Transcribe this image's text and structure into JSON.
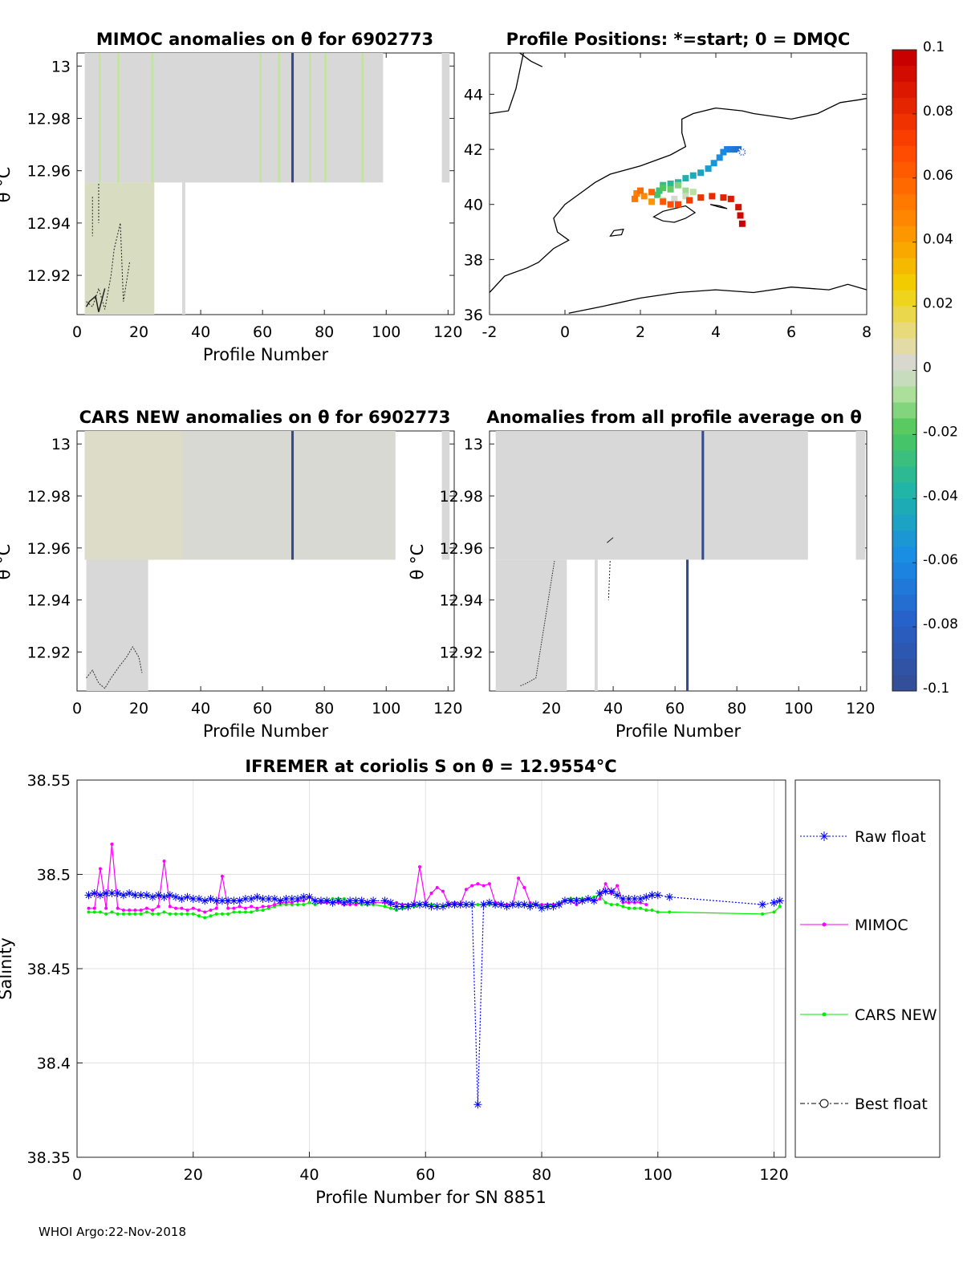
{
  "footer": "WHOI Argo:22-Nov-2018",
  "chart_data": [
    {
      "id": "mimoc",
      "type": "heatmap",
      "title": "MIMOC anomalies on θ  for 6902773",
      "xlabel": "Profile Number",
      "ylabel": "θ °C",
      "xlim": [
        0,
        122
      ],
      "ylim": [
        12.905,
        13.005
      ],
      "xticks": [
        0,
        20,
        40,
        60,
        80,
        100,
        120
      ],
      "yticks": [
        12.92,
        12.94,
        12.96,
        12.98,
        13
      ],
      "ytick_labels": [
        "12.92",
        "12.94",
        "12.96",
        "12.98",
        "13"
      ]
    },
    {
      "id": "map",
      "type": "scatter",
      "title": "Profile Positions: *=start; 0 = DMQC",
      "xlim": [
        -2,
        8
      ],
      "ylim": [
        36,
        45.5
      ],
      "xticks": [
        -2,
        0,
        2,
        4,
        6,
        8
      ],
      "yticks": [
        36,
        38,
        40,
        42,
        44
      ],
      "track": [
        [
          4.7,
          41.9
        ],
        [
          4.6,
          42.0
        ],
        [
          4.5,
          42.0
        ],
        [
          4.4,
          42.0
        ],
        [
          4.3,
          42.0
        ],
        [
          4.2,
          41.9
        ],
        [
          4.1,
          41.7
        ],
        [
          3.95,
          41.5
        ],
        [
          3.8,
          41.3
        ],
        [
          3.6,
          41.15
        ],
        [
          3.4,
          41.05
        ],
        [
          3.2,
          40.95
        ],
        [
          3.0,
          40.8
        ],
        [
          2.8,
          40.75
        ],
        [
          2.6,
          40.7
        ],
        [
          2.5,
          40.5
        ],
        [
          2.45,
          40.35
        ],
        [
          2.6,
          40.6
        ],
        [
          2.8,
          40.55
        ],
        [
          3.0,
          40.7
        ],
        [
          3.2,
          40.5
        ],
        [
          3.4,
          40.45
        ],
        [
          3.2,
          40.3
        ],
        [
          2.9,
          40.2
        ],
        [
          2.6,
          40.15
        ],
        [
          2.3,
          40.1
        ],
        [
          2.1,
          40.3
        ],
        [
          1.9,
          40.4
        ],
        [
          1.85,
          40.2
        ],
        [
          2.0,
          40.5
        ],
        [
          2.3,
          40.45
        ],
        [
          2.6,
          40.1
        ],
        [
          2.8,
          40.0
        ],
        [
          3.0,
          40.0
        ],
        [
          3.3,
          40.15
        ],
        [
          3.6,
          40.25
        ],
        [
          3.9,
          40.3
        ],
        [
          4.2,
          40.25
        ],
        [
          4.4,
          40.2
        ],
        [
          4.6,
          39.9
        ],
        [
          4.65,
          39.6
        ],
        [
          4.7,
          39.3
        ]
      ],
      "ticks_right": [
        0.1,
        0.08,
        0.06,
        0.04,
        0.02,
        0,
        -0.02,
        -0.04,
        -0.06,
        -0.08,
        -0.1
      ],
      "tick_labels_right": [
        "0.1",
        "0.08",
        "0.06",
        "0.04",
        "0.02",
        "0",
        "-0.02",
        "-0.04",
        "-0.06",
        "-0.08",
        "-0.1"
      ]
    },
    {
      "id": "cars",
      "type": "heatmap",
      "title": "CARS NEW anomalies on θ for 6902773",
      "xlabel": "Profile Number",
      "ylabel": "θ °C",
      "xlim": [
        0,
        122
      ],
      "ylim": [
        12.905,
        13.005
      ],
      "xticks": [
        0,
        20,
        40,
        60,
        80,
        100,
        120
      ],
      "yticks": [
        12.92,
        12.94,
        12.96,
        12.98,
        13
      ],
      "ytick_labels": [
        "12.92",
        "12.94",
        "12.96",
        "12.98",
        "13"
      ]
    },
    {
      "id": "avg",
      "type": "heatmap",
      "title": "Anomalies from all profile average on θ",
      "xlabel": "Profile Number",
      "ylabel": "θ °C",
      "xlim": [
        0,
        122
      ],
      "ylim": [
        12.905,
        13.005
      ],
      "xticks": [
        20,
        40,
        60,
        80,
        100,
        120
      ],
      "yticks": [
        12.92,
        12.94,
        12.96,
        12.98,
        13
      ],
      "ytick_labels": [
        "12.92",
        "12.94",
        "12.96",
        "12.98",
        "13"
      ]
    },
    {
      "id": "salinity",
      "type": "line",
      "title": "IFREMER at coriolis S on θ = 12.9554°C",
      "xlabel": "Profile Number for SN 8851",
      "ylabel": "Salinity",
      "xlim": [
        0,
        122
      ],
      "ylim": [
        38.35,
        38.55
      ],
      "xticks": [
        0,
        20,
        40,
        60,
        80,
        100,
        120
      ],
      "yticks": [
        38.35,
        38.4,
        38.45,
        38.5,
        38.55
      ],
      "ytick_labels": [
        "38.35",
        "38.4",
        "38.45",
        "38.5",
        "38.55"
      ],
      "grid": true,
      "legend_position": "outside-right",
      "series": [
        {
          "name": "Raw float",
          "color": "#0000ff",
          "x": [
            2,
            3,
            4,
            5,
            6,
            7,
            8,
            9,
            10,
            11,
            12,
            13,
            14,
            15,
            16,
            17,
            18,
            19,
            20,
            21,
            22,
            23,
            24,
            25,
            26,
            27,
            28,
            29,
            30,
            31,
            32,
            33,
            34,
            35,
            36,
            37,
            38,
            39,
            40,
            41,
            42,
            43,
            44,
            45,
            46,
            47,
            48,
            49,
            50,
            51,
            53,
            54,
            55,
            56,
            57,
            58,
            59,
            60,
            61,
            62,
            63,
            64,
            65,
            66,
            67,
            68,
            69,
            70,
            71,
            72,
            73,
            74,
            75,
            76,
            77,
            78,
            79,
            80,
            81,
            82,
            83,
            84,
            85,
            86,
            87,
            88,
            89,
            90,
            91,
            92,
            93,
            94,
            95,
            96,
            97,
            98,
            99,
            100,
            102,
            118,
            120,
            121
          ],
          "y": [
            38.489,
            38.49,
            38.489,
            38.49,
            38.49,
            38.49,
            38.489,
            38.49,
            38.489,
            38.489,
            38.489,
            38.488,
            38.489,
            38.488,
            38.489,
            38.488,
            38.487,
            38.488,
            38.487,
            38.487,
            38.486,
            38.487,
            38.486,
            38.486,
            38.486,
            38.486,
            38.486,
            38.487,
            38.487,
            38.488,
            38.487,
            38.487,
            38.487,
            38.486,
            38.487,
            38.487,
            38.487,
            38.488,
            38.488,
            38.486,
            38.486,
            38.486,
            38.485,
            38.486,
            38.485,
            38.486,
            38.486,
            38.486,
            38.485,
            38.486,
            38.486,
            38.485,
            38.483,
            38.483,
            38.483,
            38.484,
            38.484,
            38.484,
            38.483,
            38.483,
            38.483,
            38.484,
            38.484,
            38.484,
            38.484,
            38.484,
            38.378,
            38.484,
            38.485,
            38.484,
            38.484,
            38.483,
            38.484,
            38.484,
            38.484,
            38.483,
            38.484,
            38.482,
            38.483,
            38.483,
            38.484,
            38.486,
            38.486,
            38.486,
            38.486,
            38.487,
            38.486,
            38.49,
            38.491,
            38.491,
            38.489,
            38.487,
            38.487,
            38.487,
            38.487,
            38.488,
            38.489,
            38.489,
            38.488,
            38.484,
            38.485,
            38.486
          ]
        },
        {
          "name": "MIMOC",
          "color": "#ff00ff",
          "x": [
            2,
            3,
            4,
            5,
            6,
            7,
            8,
            9,
            10,
            11,
            12,
            13,
            14,
            15,
            16,
            17,
            18,
            19,
            20,
            21,
            22,
            23,
            24,
            25,
            26,
            27,
            28,
            29,
            30,
            31,
            32,
            33,
            34,
            35,
            36,
            37,
            38,
            39,
            40,
            41,
            42,
            43,
            44,
            45,
            46,
            47,
            48,
            49,
            50,
            51,
            53,
            54,
            55,
            56,
            57,
            58,
            59,
            60,
            61,
            62,
            63,
            64,
            65,
            66,
            67,
            68,
            69,
            70,
            71,
            72,
            73,
            74,
            75,
            76,
            77,
            78,
            79,
            80,
            81,
            82,
            83,
            84,
            85,
            86,
            87,
            88,
            89,
            90,
            91,
            92,
            93,
            94,
            95,
            96,
            97,
            98
          ],
          "y": [
            38.482,
            38.482,
            38.503,
            38.482,
            38.516,
            38.482,
            38.481,
            38.481,
            38.481,
            38.481,
            38.482,
            38.481,
            38.483,
            38.507,
            38.483,
            38.482,
            38.482,
            38.481,
            38.482,
            38.481,
            38.48,
            38.481,
            38.482,
            38.499,
            38.482,
            38.482,
            38.483,
            38.482,
            38.483,
            38.482,
            38.483,
            38.483,
            38.484,
            38.485,
            38.485,
            38.485,
            38.486,
            38.486,
            38.488,
            38.486,
            38.485,
            38.485,
            38.485,
            38.485,
            38.484,
            38.484,
            38.484,
            38.485,
            38.485,
            38.485,
            38.485,
            38.484,
            38.485,
            38.484,
            38.484,
            38.484,
            38.504,
            38.485,
            38.49,
            38.493,
            38.491,
            38.484,
            38.485,
            38.484,
            38.492,
            38.494,
            38.495,
            38.494,
            38.495,
            38.485,
            38.484,
            38.484,
            38.484,
            38.498,
            38.493,
            38.485,
            38.484,
            38.484,
            38.484,
            38.484,
            38.484,
            38.486,
            38.486,
            38.484,
            38.486,
            38.487,
            38.486,
            38.487,
            38.495,
            38.49,
            38.494,
            38.485,
            38.485,
            38.485,
            38.485,
            38.484
          ]
        },
        {
          "name": "CARS NEW",
          "color": "#00ee00",
          "x": [
            2,
            3,
            4,
            5,
            6,
            7,
            8,
            9,
            10,
            11,
            12,
            13,
            14,
            15,
            16,
            17,
            18,
            19,
            20,
            21,
            22,
            23,
            24,
            25,
            26,
            27,
            28,
            29,
            30,
            31,
            32,
            33,
            34,
            35,
            36,
            37,
            38,
            39,
            40,
            41,
            42,
            43,
            44,
            45,
            46,
            47,
            48,
            49,
            50,
            51,
            53,
            54,
            55,
            56,
            57,
            58,
            59,
            60,
            61,
            62,
            63,
            64,
            65,
            66,
            67,
            68,
            69,
            70,
            71,
            72,
            73,
            74,
            75,
            76,
            77,
            78,
            79,
            80,
            81,
            82,
            83,
            84,
            85,
            86,
            87,
            88,
            89,
            90,
            91,
            92,
            93,
            94,
            95,
            96,
            97,
            98,
            99,
            100,
            102,
            118,
            120,
            121
          ],
          "y": [
            38.48,
            38.48,
            38.48,
            38.479,
            38.48,
            38.479,
            38.479,
            38.479,
            38.479,
            38.479,
            38.48,
            38.479,
            38.479,
            38.48,
            38.479,
            38.479,
            38.479,
            38.479,
            38.479,
            38.478,
            38.477,
            38.478,
            38.479,
            38.479,
            38.479,
            38.48,
            38.48,
            38.48,
            38.48,
            38.481,
            38.481,
            38.482,
            38.483,
            38.484,
            38.484,
            38.484,
            38.484,
            38.484,
            38.485,
            38.484,
            38.485,
            38.486,
            38.487,
            38.487,
            38.487,
            38.485,
            38.485,
            38.484,
            38.484,
            38.484,
            38.483,
            38.482,
            38.481,
            38.482,
            38.483,
            38.483,
            38.484,
            38.484,
            38.484,
            38.483,
            38.483,
            38.484,
            38.484,
            38.484,
            38.484,
            38.484,
            38.484,
            38.484,
            38.484,
            38.484,
            38.484,
            38.484,
            38.484,
            38.484,
            38.484,
            38.484,
            38.484,
            38.483,
            38.483,
            38.484,
            38.485,
            38.486,
            38.487,
            38.487,
            38.487,
            38.487,
            38.488,
            38.489,
            38.485,
            38.484,
            38.484,
            38.483,
            38.482,
            38.482,
            38.482,
            38.481,
            38.481,
            38.48,
            38.48,
            38.479,
            38.48,
            38.483
          ]
        },
        {
          "name": "Best float",
          "color": "#000000",
          "x": [],
          "y": []
        }
      ]
    }
  ]
}
